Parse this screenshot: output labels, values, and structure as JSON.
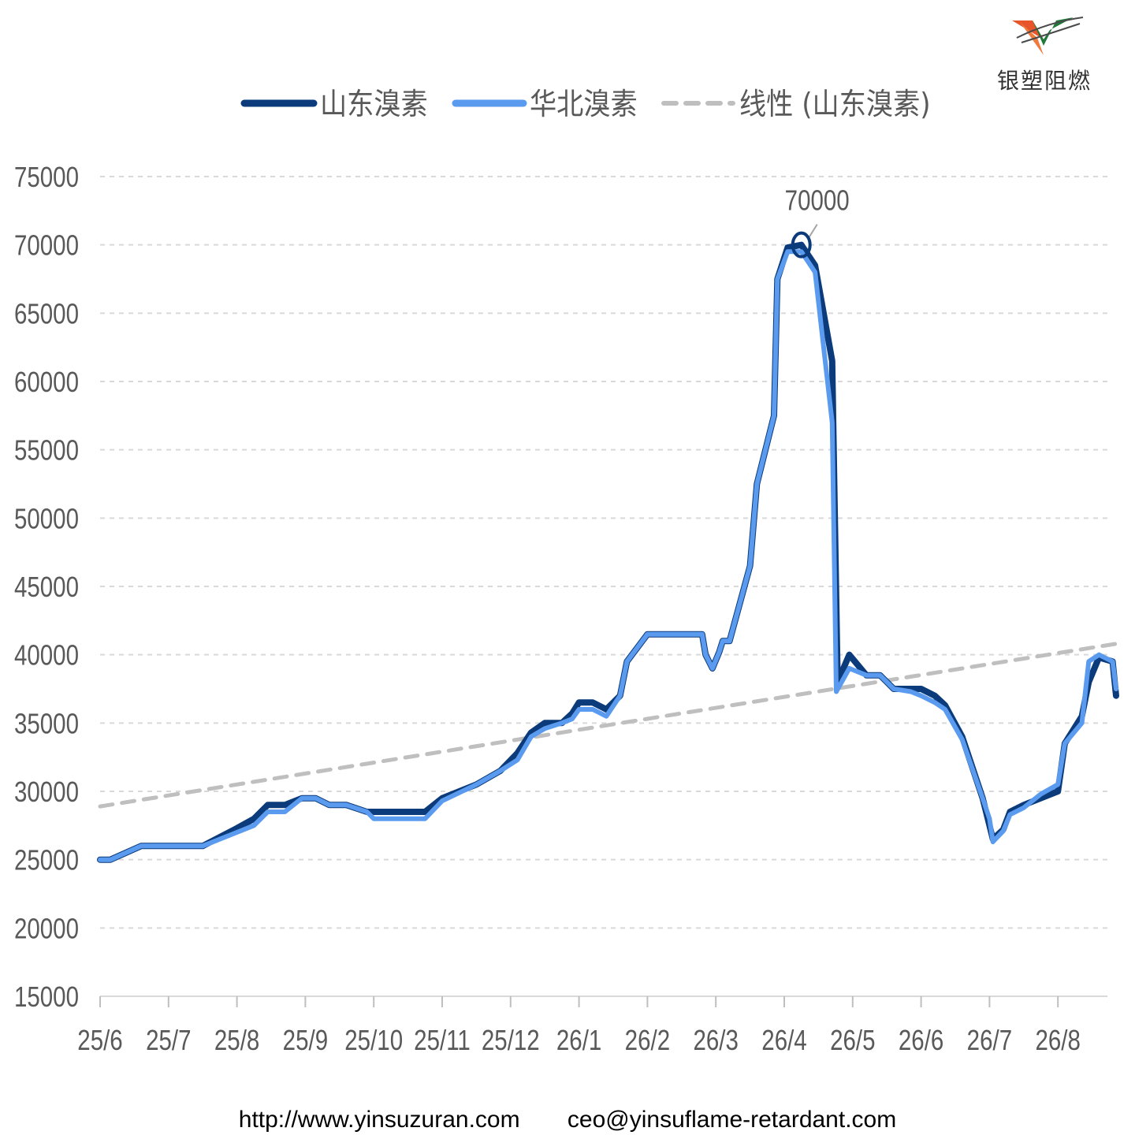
{
  "logo": {
    "text": "银塑阻燃",
    "icon": "v-swoosh-logo-icon",
    "colors": [
      "#e8552b",
      "#1f7a3a",
      "#4a4a4a"
    ]
  },
  "footer": {
    "website": "http://www.yinsuzuran.com",
    "email": "ceo@yinsuflame-retardant.com"
  },
  "chart_data": {
    "type": "line",
    "title": "",
    "xlabel": "",
    "ylabel": "",
    "ylim": [
      15000,
      75000
    ],
    "yticks": [
      15000,
      20000,
      25000,
      30000,
      35000,
      40000,
      45000,
      50000,
      55000,
      60000,
      65000,
      70000,
      75000
    ],
    "ytick_labels": [
      "15000",
      "20000",
      "25000",
      "30000",
      "35000",
      "40000",
      "45000",
      "50000",
      "55000",
      "60000",
      "65000",
      "70000",
      "75000"
    ],
    "xticks": [
      "25/6",
      "25/7",
      "25/8",
      "25/9",
      "25/10",
      "25/11",
      "25/12",
      "26/1",
      "26/2",
      "26/3",
      "26/4",
      "26/5",
      "26/6",
      "26/7",
      "26/8"
    ],
    "x_unit": "month index (0 = 25/6)",
    "xlim": [
      0,
      14.85
    ],
    "grid": true,
    "legend_position": "top",
    "annotation": {
      "text": "70000",
      "x": 10.25,
      "y": 70000
    },
    "series": [
      {
        "name": "山东溴素",
        "color": "#0b3b7a",
        "points": [
          [
            0,
            25000
          ],
          [
            0.15,
            25000
          ],
          [
            0.6,
            26000
          ],
          [
            1.0,
            26000
          ],
          [
            1.5,
            26000
          ],
          [
            1.5,
            26000
          ],
          [
            2.0,
            27300
          ],
          [
            2.25,
            28000
          ],
          [
            2.45,
            29000
          ],
          [
            2.7,
            29000
          ],
          [
            2.95,
            29500
          ],
          [
            3.15,
            29500
          ],
          [
            3.35,
            29000
          ],
          [
            3.6,
            29000
          ],
          [
            3.9,
            28500
          ],
          [
            4.0,
            28500
          ],
          [
            4.4,
            28500
          ],
          [
            4.75,
            28500
          ],
          [
            5.0,
            29500
          ],
          [
            5.5,
            30500
          ],
          [
            5.85,
            31500
          ],
          [
            6.1,
            32800
          ],
          [
            6.3,
            34300
          ],
          [
            6.5,
            35000
          ],
          [
            6.75,
            35000
          ],
          [
            6.9,
            35700
          ],
          [
            7.0,
            36500
          ],
          [
            7.2,
            36500
          ],
          [
            7.4,
            36000
          ],
          [
            7.6,
            37000
          ],
          [
            7.7,
            39500
          ],
          [
            8.0,
            41500
          ],
          [
            8.5,
            41500
          ],
          [
            8.8,
            41500
          ],
          [
            8.85,
            40000
          ],
          [
            8.95,
            39000
          ],
          [
            9.05,
            40200
          ],
          [
            9.1,
            41000
          ],
          [
            9.2,
            41000
          ],
          [
            9.5,
            46500
          ],
          [
            9.6,
            52500
          ],
          [
            9.85,
            57500
          ],
          [
            9.9,
            67500
          ],
          [
            10.05,
            69800
          ],
          [
            10.25,
            70000
          ],
          [
            10.45,
            68500
          ],
          [
            10.7,
            61500
          ],
          [
            10.78,
            38000
          ],
          [
            10.95,
            40000
          ],
          [
            11.2,
            38500
          ],
          [
            11.4,
            38500
          ],
          [
            11.6,
            37500
          ],
          [
            11.85,
            37500
          ],
          [
            12.0,
            37500
          ],
          [
            12.2,
            37000
          ],
          [
            12.35,
            36300
          ],
          [
            12.6,
            34000
          ],
          [
            12.9,
            29500
          ],
          [
            13.0,
            27500
          ],
          [
            13.05,
            26500
          ],
          [
            13.2,
            27200
          ],
          [
            13.3,
            28500
          ],
          [
            13.5,
            29000
          ],
          [
            13.75,
            29500
          ],
          [
            14.0,
            30000
          ],
          [
            14.1,
            33500
          ],
          [
            14.35,
            35500
          ],
          [
            14.45,
            38000
          ],
          [
            14.6,
            39800
          ],
          [
            14.8,
            39500
          ],
          [
            14.85,
            37000
          ]
        ]
      },
      {
        "name": "华北溴素",
        "color": "#5b9bef",
        "points": [
          [
            0,
            25000
          ],
          [
            0.15,
            25000
          ],
          [
            0.6,
            26000
          ],
          [
            1.0,
            26000
          ],
          [
            1.5,
            26000
          ],
          [
            1.5,
            26000
          ],
          [
            2.0,
            27000
          ],
          [
            2.25,
            27500
          ],
          [
            2.45,
            28500
          ],
          [
            2.7,
            28500
          ],
          [
            2.95,
            29500
          ],
          [
            3.15,
            29500
          ],
          [
            3.35,
            29000
          ],
          [
            3.6,
            29000
          ],
          [
            3.9,
            28500
          ],
          [
            4.0,
            28000
          ],
          [
            4.4,
            28000
          ],
          [
            4.75,
            28000
          ],
          [
            5.0,
            29300
          ],
          [
            5.5,
            30500
          ],
          [
            5.85,
            31500
          ],
          [
            6.1,
            32300
          ],
          [
            6.3,
            34000
          ],
          [
            6.5,
            34600
          ],
          [
            6.75,
            35000
          ],
          [
            6.9,
            35300
          ],
          [
            7.0,
            36000
          ],
          [
            7.2,
            36000
          ],
          [
            7.4,
            35500
          ],
          [
            7.6,
            37000
          ],
          [
            7.7,
            39500
          ],
          [
            8.0,
            41500
          ],
          [
            8.5,
            41500
          ],
          [
            8.8,
            41500
          ],
          [
            8.85,
            40000
          ],
          [
            8.95,
            39000
          ],
          [
            9.05,
            40200
          ],
          [
            9.1,
            41000
          ],
          [
            9.2,
            41000
          ],
          [
            9.5,
            46500
          ],
          [
            9.6,
            52500
          ],
          [
            9.85,
            57500
          ],
          [
            9.9,
            67500
          ],
          [
            10.05,
            69500
          ],
          [
            10.25,
            69500
          ],
          [
            10.45,
            68000
          ],
          [
            10.7,
            57000
          ],
          [
            10.76,
            37300
          ],
          [
            10.95,
            39000
          ],
          [
            11.2,
            38500
          ],
          [
            11.4,
            38500
          ],
          [
            11.6,
            37500
          ],
          [
            11.85,
            37300
          ],
          [
            12.0,
            37000
          ],
          [
            12.2,
            36500
          ],
          [
            12.35,
            36000
          ],
          [
            12.6,
            33800
          ],
          [
            12.9,
            29500
          ],
          [
            13.0,
            28000
          ],
          [
            13.05,
            26300
          ],
          [
            13.2,
            27100
          ],
          [
            13.3,
            28300
          ],
          [
            13.5,
            28800
          ],
          [
            13.75,
            29800
          ],
          [
            14.0,
            30500
          ],
          [
            14.1,
            33500
          ],
          [
            14.35,
            35000
          ],
          [
            14.45,
            39500
          ],
          [
            14.6,
            40000
          ],
          [
            14.8,
            39500
          ],
          [
            14.85,
            37500
          ]
        ]
      },
      {
        "name": "线性 (山东溴素)",
        "color": "#bfbfbf",
        "dashed": true,
        "points": [
          [
            0,
            28900
          ],
          [
            14.85,
            40800
          ]
        ]
      }
    ]
  }
}
